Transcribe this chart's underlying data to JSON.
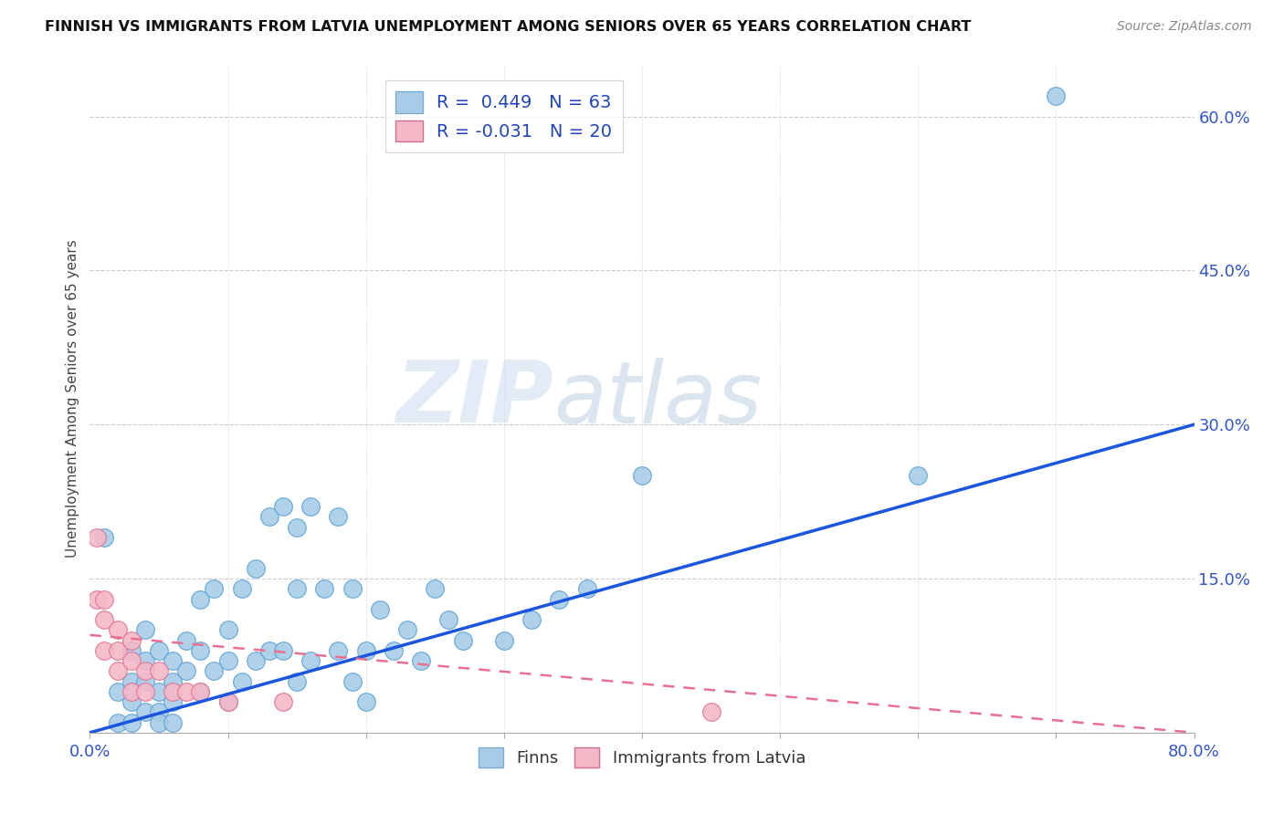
{
  "title": "FINNISH VS IMMIGRANTS FROM LATVIA UNEMPLOYMENT AMONG SENIORS OVER 65 YEARS CORRELATION CHART",
  "source": "Source: ZipAtlas.com",
  "ylabel": "Unemployment Among Seniors over 65 years",
  "xlim": [
    0.0,
    0.8
  ],
  "ylim": [
    0.0,
    0.65
  ],
  "xticks": [
    0.0,
    0.1,
    0.2,
    0.3,
    0.4,
    0.5,
    0.6,
    0.7,
    0.8
  ],
  "yticks_right": [
    0.0,
    0.15,
    0.3,
    0.45,
    0.6
  ],
  "ytick_right_labels": [
    "",
    "15.0%",
    "30.0%",
    "45.0%",
    "60.0%"
  ],
  "watermark_zip": "ZIP",
  "watermark_atlas": "atlas",
  "finn_color": "#a8cce8",
  "finn_edge_color": "#5a9fd4",
  "latvia_color": "#f4b8c8",
  "latvia_edge_color": "#e07090",
  "trend_finn_color": "#1a55e0",
  "trend_latvia_color": "#e87090",
  "finn_x": [
    0.01,
    0.02,
    0.02,
    0.03,
    0.03,
    0.03,
    0.03,
    0.04,
    0.04,
    0.04,
    0.04,
    0.05,
    0.05,
    0.05,
    0.05,
    0.06,
    0.06,
    0.06,
    0.06,
    0.07,
    0.07,
    0.08,
    0.08,
    0.08,
    0.09,
    0.09,
    0.1,
    0.1,
    0.1,
    0.11,
    0.11,
    0.12,
    0.12,
    0.13,
    0.13,
    0.14,
    0.14,
    0.15,
    0.15,
    0.15,
    0.16,
    0.16,
    0.17,
    0.18,
    0.18,
    0.19,
    0.19,
    0.2,
    0.2,
    0.21,
    0.22,
    0.23,
    0.24,
    0.25,
    0.26,
    0.27,
    0.3,
    0.32,
    0.34,
    0.36,
    0.4,
    0.6,
    0.7
  ],
  "finn_y": [
    0.19,
    0.04,
    0.01,
    0.08,
    0.05,
    0.03,
    0.01,
    0.07,
    0.05,
    0.1,
    0.02,
    0.08,
    0.04,
    0.02,
    0.01,
    0.07,
    0.05,
    0.03,
    0.01,
    0.09,
    0.06,
    0.13,
    0.08,
    0.04,
    0.14,
    0.06,
    0.1,
    0.07,
    0.03,
    0.14,
    0.05,
    0.16,
    0.07,
    0.21,
    0.08,
    0.22,
    0.08,
    0.2,
    0.14,
    0.05,
    0.22,
    0.07,
    0.14,
    0.21,
    0.08,
    0.14,
    0.05,
    0.08,
    0.03,
    0.12,
    0.08,
    0.1,
    0.07,
    0.14,
    0.11,
    0.09,
    0.09,
    0.11,
    0.13,
    0.14,
    0.25,
    0.25,
    0.62
  ],
  "latvia_x": [
    0.005,
    0.005,
    0.01,
    0.01,
    0.01,
    0.02,
    0.02,
    0.02,
    0.03,
    0.03,
    0.03,
    0.04,
    0.04,
    0.05,
    0.06,
    0.07,
    0.08,
    0.1,
    0.14,
    0.45
  ],
  "latvia_y": [
    0.19,
    0.13,
    0.13,
    0.11,
    0.08,
    0.1,
    0.08,
    0.06,
    0.09,
    0.07,
    0.04,
    0.06,
    0.04,
    0.06,
    0.04,
    0.04,
    0.04,
    0.03,
    0.03,
    0.02
  ],
  "trend_finn_x0": 0.0,
  "trend_finn_y0": 0.0,
  "trend_finn_x1": 0.8,
  "trend_finn_y1": 0.3,
  "trend_latvia_x0": 0.0,
  "trend_latvia_y0": 0.095,
  "trend_latvia_x1": 0.8,
  "trend_latvia_y1": 0.0
}
